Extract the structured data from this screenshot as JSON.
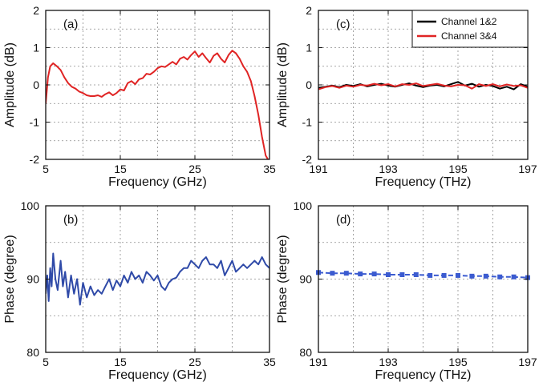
{
  "chart_data": [
    {
      "id": "a",
      "type": "line",
      "panel_label": "(a)",
      "xlabel": "Frequency (GHz)",
      "ylabel": "Amplitude (dB)",
      "xlim": [
        5,
        35
      ],
      "ylim": [
        -2,
        2
      ],
      "xticks": [
        5,
        15,
        25,
        35
      ],
      "xtick_labels": [
        "5",
        "15",
        "25",
        "35"
      ],
      "xminor": [
        10,
        20,
        30
      ],
      "yticks": [
        -2,
        -1,
        0,
        1,
        2
      ],
      "ytick_labels": [
        "-2",
        "-1",
        "0",
        "1",
        "2"
      ],
      "yminor": [
        -1.5,
        -0.5,
        0.5,
        1.5
      ],
      "grid": true,
      "series": [
        {
          "color": "#e02424",
          "x": [
            5,
            5.3,
            5.6,
            6,
            6.5,
            7,
            7.5,
            8,
            8.5,
            9,
            9.5,
            10,
            10.5,
            11,
            11.5,
            12,
            12.5,
            13,
            13.5,
            14,
            14.5,
            15,
            15.5,
            16,
            16.5,
            17,
            17.5,
            18,
            18.5,
            19,
            19.5,
            20,
            20.5,
            21,
            21.5,
            22,
            22.5,
            23,
            23.5,
            24,
            24.5,
            25,
            25.5,
            26,
            26.5,
            27,
            27.5,
            28,
            28.5,
            29,
            29.5,
            30,
            30.5,
            31,
            31.5,
            32,
            32.5,
            33,
            33.5,
            34,
            34.5,
            34.8
          ],
          "values": [
            -0.5,
            0.2,
            0.5,
            0.58,
            0.5,
            0.4,
            0.2,
            0.05,
            -0.05,
            -0.1,
            -0.18,
            -0.22,
            -0.28,
            -0.3,
            -0.3,
            -0.28,
            -0.32,
            -0.25,
            -0.2,
            -0.28,
            -0.22,
            -0.12,
            -0.15,
            0.05,
            0.1,
            0.02,
            0.15,
            0.18,
            0.3,
            0.28,
            0.35,
            0.45,
            0.5,
            0.48,
            0.55,
            0.62,
            0.55,
            0.7,
            0.75,
            0.68,
            0.8,
            0.9,
            0.75,
            0.85,
            0.72,
            0.6,
            0.78,
            0.85,
            0.7,
            0.6,
            0.8,
            0.92,
            0.85,
            0.7,
            0.5,
            0.35,
            0.1,
            -0.3,
            -0.8,
            -1.4,
            -1.9,
            -2
          ]
        }
      ]
    },
    {
      "id": "b",
      "type": "line",
      "panel_label": "(b)",
      "xlabel": "Frequency (GHz)",
      "ylabel": "Phase (degree)",
      "xlim": [
        5,
        35
      ],
      "ylim": [
        80,
        100
      ],
      "xticks": [
        5,
        15,
        25,
        35
      ],
      "xtick_labels": [
        "5",
        "15",
        "25",
        "35"
      ],
      "xminor": [
        10,
        20,
        30
      ],
      "yticks": [
        80,
        90,
        100
      ],
      "ytick_labels": [
        "80",
        "90",
        "100"
      ],
      "yminor": [
        85,
        95
      ],
      "grid": true,
      "series": [
        {
          "color": "#2f4aa8",
          "x": [
            5,
            5.2,
            5.4,
            5.6,
            5.8,
            6,
            6.3,
            6.6,
            7,
            7.3,
            7.6,
            8,
            8.4,
            8.8,
            9.2,
            9.6,
            10,
            10.5,
            11,
            11.5,
            12,
            12.5,
            13,
            13.5,
            14,
            14.5,
            15,
            15.5,
            16,
            16.5,
            17,
            17.5,
            18,
            18.5,
            19,
            19.5,
            20,
            20.5,
            21,
            21.5,
            22,
            22.5,
            23,
            23.5,
            24,
            24.5,
            25,
            25.5,
            26,
            26.5,
            27,
            27.5,
            28,
            28.5,
            29,
            29.5,
            30,
            30.5,
            31,
            31.5,
            32,
            32.5,
            33,
            33.5,
            34,
            34.5,
            35
          ],
          "values": [
            88,
            90.5,
            87,
            91.5,
            89,
            93.5,
            90,
            88.5,
            92.5,
            89,
            91,
            87.5,
            90.5,
            88,
            90,
            86.5,
            89.5,
            87.5,
            89,
            87.8,
            88.5,
            88,
            89,
            90,
            88.5,
            89.8,
            89,
            90.5,
            89.5,
            91,
            90,
            90.5,
            89.5,
            91,
            90.5,
            89.8,
            90.5,
            89,
            88.5,
            89.5,
            90,
            90.2,
            91,
            91.5,
            91.5,
            92.5,
            92,
            91.5,
            92.5,
            93,
            92,
            92,
            91.5,
            92.5,
            90.5,
            91.5,
            92.5,
            91,
            91.5,
            92,
            91.5,
            92,
            92.5,
            92,
            93,
            92,
            91.5
          ]
        }
      ]
    },
    {
      "id": "c",
      "type": "line",
      "panel_label": "(c)",
      "xlabel": "Frequency (THz)",
      "ylabel": "Amplitude (dB)",
      "xlim": [
        191,
        197
      ],
      "ylim": [
        -2,
        2
      ],
      "xticks": [
        191,
        193,
        195,
        197
      ],
      "xtick_labels": [
        "191",
        "193",
        "195",
        "197"
      ],
      "xminor": [
        192,
        194,
        196
      ],
      "yticks": [
        -2,
        -1,
        0,
        1,
        2
      ],
      "ytick_labels": [
        "-2",
        "-1",
        "0",
        "1",
        "2"
      ],
      "yminor": [
        -1.5,
        -0.5,
        0.5,
        1.5
      ],
      "grid": true,
      "legend": {
        "position": "top-right"
      },
      "series": [
        {
          "name": "Channel 1&2",
          "color": "#000000",
          "x": [
            191,
            191.2,
            191.4,
            191.6,
            191.8,
            192,
            192.2,
            192.4,
            192.6,
            192.8,
            193,
            193.2,
            193.4,
            193.6,
            193.8,
            194,
            194.2,
            194.4,
            194.6,
            194.8,
            195,
            195.2,
            195.4,
            195.6,
            195.8,
            196,
            196.2,
            196.4,
            196.6,
            196.8,
            197
          ],
          "values": [
            -0.08,
            -0.05,
            -0.02,
            -0.06,
            0.0,
            -0.03,
            0.02,
            -0.04,
            0.0,
            0.03,
            -0.02,
            -0.05,
            0.0,
            0.04,
            -0.02,
            -0.06,
            -0.02,
            0.0,
            -0.04,
            0.02,
            0.08,
            -0.02,
            0.03,
            -0.05,
            0.0,
            -0.03,
            -0.1,
            -0.05,
            -0.12,
            0.02,
            -0.05
          ]
        },
        {
          "name": "Channel 3&4",
          "color": "#e02424",
          "x": [
            191,
            191.2,
            191.4,
            191.6,
            191.8,
            192,
            192.2,
            192.4,
            192.6,
            192.8,
            193,
            193.2,
            193.4,
            193.6,
            193.8,
            194,
            194.2,
            194.4,
            194.6,
            194.8,
            195,
            195.2,
            195.4,
            195.6,
            195.8,
            196,
            196.2,
            196.4,
            196.6,
            196.8,
            197
          ],
          "values": [
            -0.12,
            -0.06,
            -0.03,
            -0.08,
            -0.02,
            -0.05,
            0.0,
            -0.02,
            0.03,
            -0.01,
            0.02,
            -0.04,
            0.02,
            0.0,
            0.04,
            -0.03,
            0.0,
            0.03,
            -0.02,
            -0.04,
            0.0,
            -0.01,
            -0.1,
            0.02,
            -0.03,
            0.02,
            -0.04,
            0.01,
            -0.03,
            -0.01,
            -0.08
          ]
        }
      ]
    },
    {
      "id": "d",
      "type": "line",
      "panel_label": "(d)",
      "xlabel": "Frequency (THz)",
      "ylabel": "Phase (degree)",
      "xlim": [
        191,
        197
      ],
      "ylim": [
        80,
        100
      ],
      "xticks": [
        191,
        193,
        195,
        197
      ],
      "xtick_labels": [
        "191",
        "193",
        "195",
        "197"
      ],
      "xminor": [
        192,
        194,
        196
      ],
      "yticks": [
        80,
        90,
        100
      ],
      "ytick_labels": [
        "80",
        "90",
        "100"
      ],
      "yminor": [
        85,
        95
      ],
      "grid": true,
      "series": [
        {
          "color": "#3b5bd0",
          "dashed": true,
          "markers": "square",
          "x": [
            191,
            191.4,
            191.8,
            192.2,
            192.6,
            193,
            193.4,
            193.8,
            194.2,
            194.6,
            195,
            195.4,
            195.8,
            196.2,
            196.6,
            197
          ],
          "values": [
            90.9,
            90.8,
            90.8,
            90.7,
            90.7,
            90.6,
            90.6,
            90.6,
            90.5,
            90.5,
            90.5,
            90.4,
            90.4,
            90.3,
            90.3,
            90.2
          ]
        }
      ]
    }
  ]
}
